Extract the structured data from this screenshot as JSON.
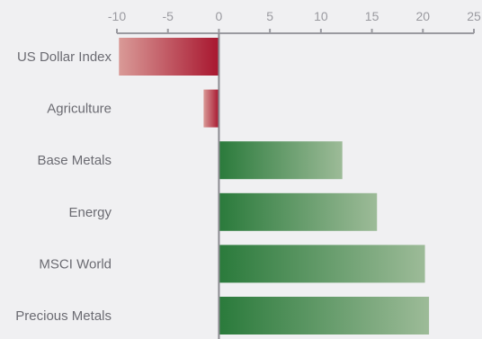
{
  "chart_data": {
    "type": "bar",
    "orientation": "horizontal",
    "title": "",
    "xlabel": "",
    "ylabel": "",
    "categories": [
      "US Dollar Index",
      "Agriculture",
      "Base Metals",
      "Energy",
      "MSCI World",
      "Precious Metals"
    ],
    "values": [
      -9.8,
      -1.5,
      12.1,
      15.5,
      20.2,
      20.6
    ],
    "xlim": [
      -10,
      25
    ],
    "xticks": [
      -10,
      -5,
      0,
      5,
      10,
      15,
      20,
      25
    ],
    "xtick_labels": [
      "-10",
      "-5",
      "0",
      "5",
      "10",
      "15",
      "20",
      "25"
    ],
    "axis_position": "top",
    "grid": false,
    "colors": {
      "positive_dark": "#2a7a3b",
      "positive_light": "#9dbb98",
      "negative_dark": "#a8162f",
      "negative_light": "#d99a97",
      "axis": "#9a9aa0",
      "zero_line": "#8a8a90",
      "background": "#f0f0f2"
    }
  }
}
